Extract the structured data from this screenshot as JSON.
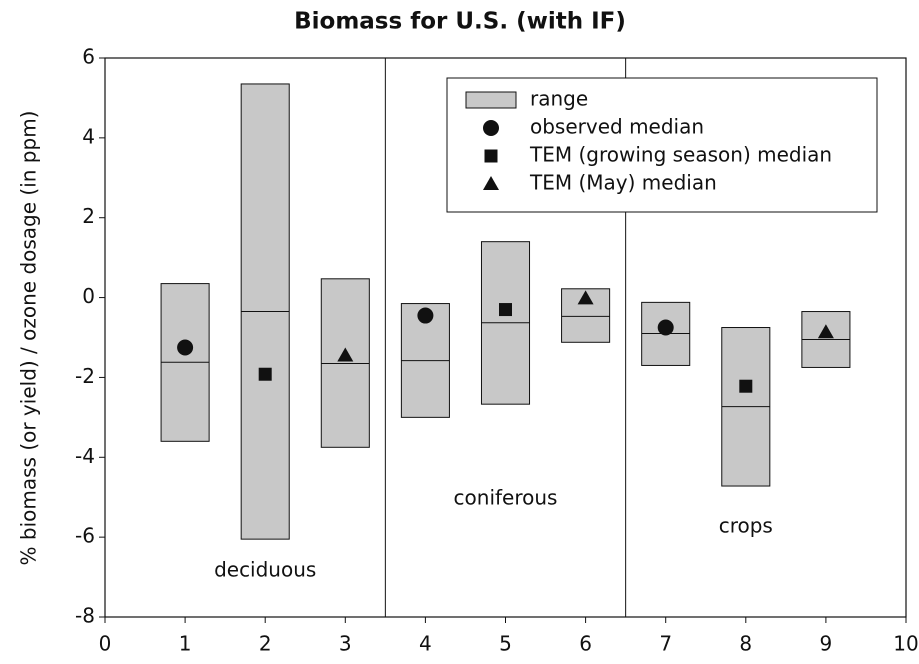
{
  "chart_data": {
    "type": "range-box",
    "title": "Biomass for U.S. (with IF)",
    "y_label": "% biomass (or yield) / ozone dosage (in ppm)",
    "xlim": [
      0,
      10
    ],
    "xticks": [
      0,
      1,
      2,
      3,
      4,
      5,
      6,
      7,
      8,
      9,
      10
    ],
    "ylim": [
      -8,
      6
    ],
    "yticks": [
      -8,
      -6,
      -4,
      -2,
      0,
      2,
      4,
      6
    ],
    "separators": [
      3.5,
      6.5
    ],
    "annotations": [
      {
        "text": "deciduous",
        "x": 2,
        "y": -6.85
      },
      {
        "text": "coniferous",
        "x": 5,
        "y": -5.05
      },
      {
        "text": "crops",
        "x": 8,
        "y": -5.75
      }
    ],
    "series": [
      {
        "name": "range",
        "color": "#c8c8c8",
        "x": [
          1,
          2,
          3,
          4,
          5,
          6,
          7,
          8,
          9
        ],
        "low": [
          -3.6,
          -6.05,
          -3.75,
          -3.0,
          -2.67,
          -1.12,
          -1.7,
          -4.72,
          -1.75
        ],
        "high": [
          0.35,
          5.35,
          0.47,
          -0.15,
          1.4,
          0.22,
          -0.12,
          -0.75,
          -0.35
        ],
        "median": [
          -1.62,
          -0.35,
          -1.65,
          -1.58,
          -0.63,
          -0.47,
          -0.9,
          -2.73,
          -1.05
        ]
      },
      {
        "name": "observed median",
        "marker": "circle",
        "color": "#111111",
        "x": [
          1,
          4,
          7
        ],
        "values": [
          -1.25,
          -0.45,
          -0.75
        ]
      },
      {
        "name": "TEM (growing season) median",
        "marker": "square",
        "color": "#111111",
        "x": [
          2,
          5,
          8
        ],
        "values": [
          -1.92,
          -0.3,
          -2.22
        ]
      },
      {
        "name": "TEM (May) median",
        "marker": "triangle",
        "color": "#111111",
        "x": [
          3,
          6,
          9
        ],
        "values": [
          -1.45,
          -0.02,
          -0.87
        ]
      }
    ]
  }
}
